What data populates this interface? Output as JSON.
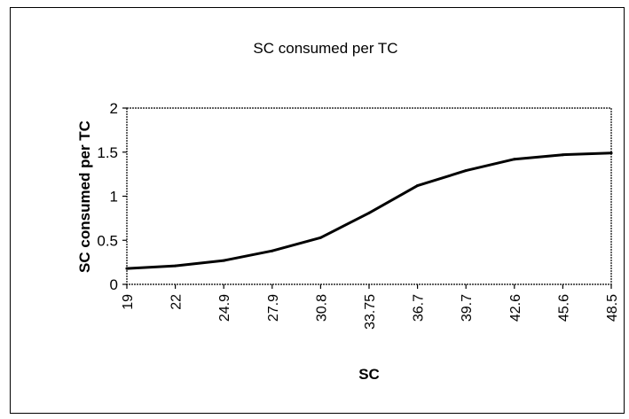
{
  "chart_data": {
    "type": "line",
    "title": "SC consumed per TC",
    "xlabel": "SC",
    "ylabel": "SC consumed per TC",
    "categories": [
      "19",
      "22",
      "24.9",
      "27.9",
      "30.8",
      "33.75",
      "36.7",
      "39.7",
      "42.6",
      "45.6",
      "48.5"
    ],
    "series": [
      {
        "values": [
          0.18,
          0.21,
          0.27,
          0.38,
          0.53,
          0.81,
          1.12,
          1.29,
          1.42,
          1.47,
          1.49
        ]
      }
    ],
    "ylim": [
      0,
      2
    ],
    "yticks": [
      "0",
      "0.5",
      "1",
      "1.5",
      "2"
    ],
    "grid": false,
    "legend": "none",
    "colors": {
      "line": "#000000",
      "frame": "#000000",
      "background": "#ffffff"
    }
  }
}
